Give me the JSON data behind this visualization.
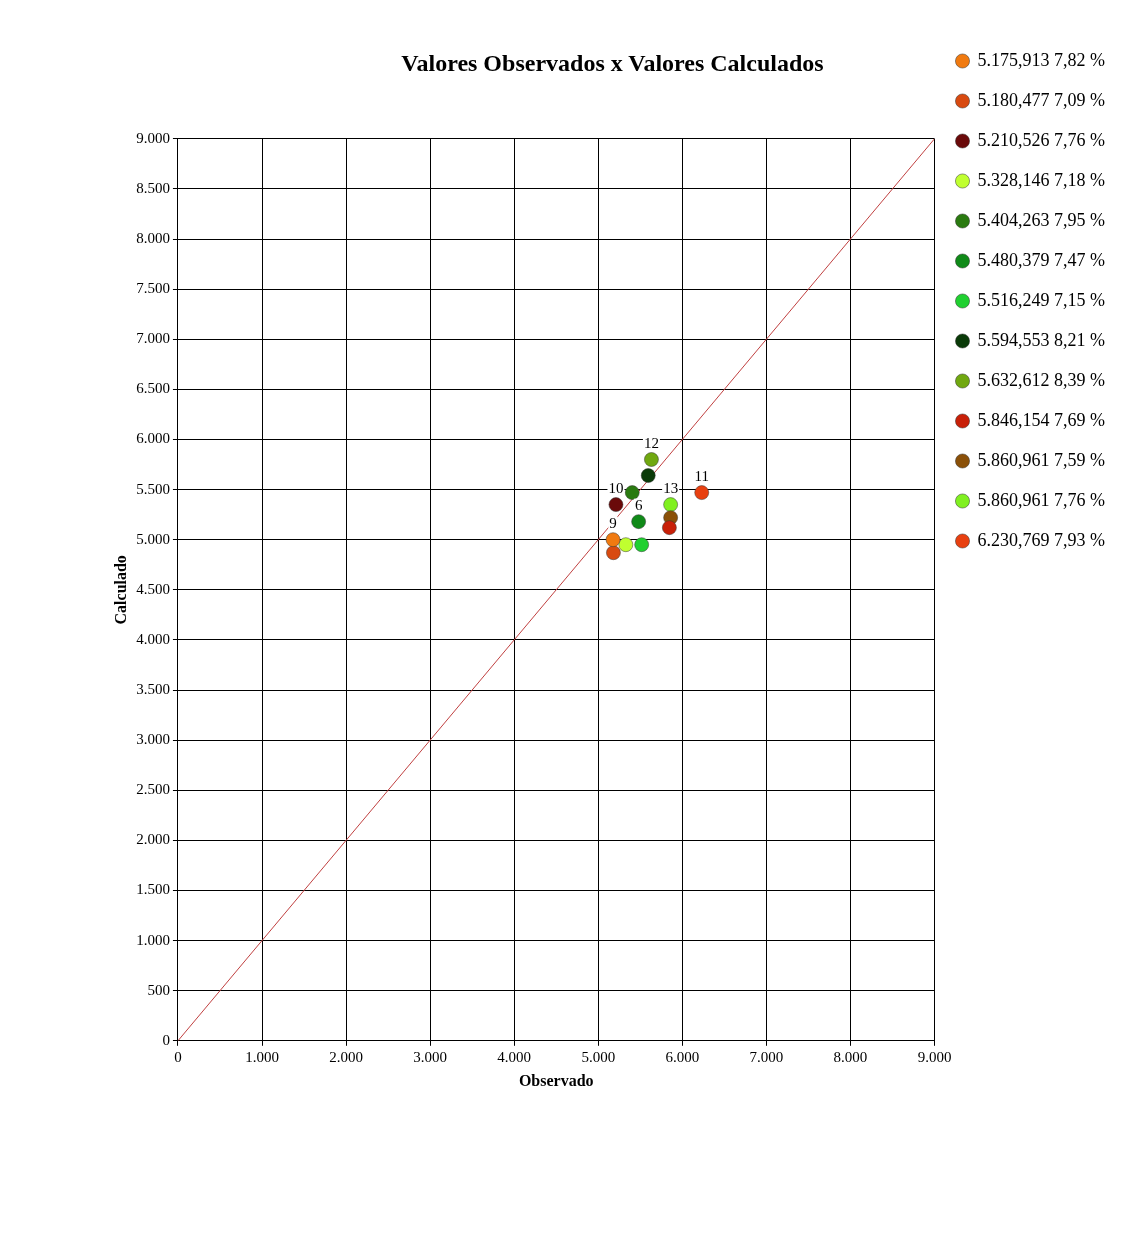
{
  "chart_data": {
    "type": "scatter",
    "title": "Valores Observados x Valores Calculados",
    "xlabel": "Observado",
    "ylabel": "Calculado",
    "xlim": [
      0,
      9000
    ],
    "ylim": [
      0,
      9000
    ],
    "xticks": [
      0,
      {
        "value": 1000,
        "label": "1.000"
      },
      {
        "value": 2000,
        "label": "2.000"
      },
      {
        "value": 3000,
        "label": "3.000"
      },
      {
        "value": 4000,
        "label": "4.000"
      },
      {
        "value": 5000,
        "label": "5.000"
      },
      {
        "value": 6000,
        "label": "6.000"
      },
      {
        "value": 7000,
        "label": "7.000"
      },
      {
        "value": 8000,
        "label": "8.000"
      },
      {
        "value": 9000,
        "label": "9.000"
      }
    ],
    "yticks": [
      0,
      500,
      {
        "value": 1000,
        "label": "1.000"
      },
      {
        "value": 1500,
        "label": "1.500"
      },
      {
        "value": 2000,
        "label": "2.000"
      },
      {
        "value": 2500,
        "label": "2.500"
      },
      {
        "value": 3000,
        "label": "3.000"
      },
      {
        "value": 3500,
        "label": "3.500"
      },
      {
        "value": 4000,
        "label": "4.000"
      },
      {
        "value": 4500,
        "label": "4.500"
      },
      {
        "value": 5000,
        "label": "5.000"
      },
      {
        "value": 5500,
        "label": "5.500"
      },
      {
        "value": 6000,
        "label": "6.000"
      },
      {
        "value": 6500,
        "label": "6.500"
      },
      {
        "value": 7000,
        "label": "7.000"
      },
      {
        "value": 7500,
        "label": "7.500"
      },
      {
        "value": 8000,
        "label": "8.000"
      },
      {
        "value": 8500,
        "label": "8.500"
      },
      {
        "value": 9000,
        "label": "9.000"
      }
    ],
    "grid": true,
    "legend": "right",
    "marker": "circle",
    "series": [
      {
        "name": "5.175,913 7,82 %",
        "color": "#f07a10",
        "x": [
          5175.913
        ],
        "values": [
          5000
        ]
      },
      {
        "name": "5.180,477 7,09 %",
        "color": "#d84a10",
        "x": [
          5180.477
        ],
        "values": [
          4870
        ]
      },
      {
        "name": "5.210,526 7,76 %",
        "color": "#6a0a0a",
        "x": [
          5210.526
        ],
        "values": [
          5350
        ]
      },
      {
        "name": "5.328,146 7,18 %",
        "color": "#c0ff30",
        "x": [
          5328.146
        ],
        "values": [
          4950
        ]
      },
      {
        "name": "5.404,263 7,95 %",
        "color": "#2a7a10",
        "x": [
          5404.263
        ],
        "values": [
          5470
        ]
      },
      {
        "name": "5.480,379 7,47 %",
        "color": "#108a18",
        "x": [
          5480.379
        ],
        "values": [
          5180
        ]
      },
      {
        "name": "5.516,249 7,15 %",
        "color": "#20d030",
        "x": [
          5516.249
        ],
        "values": [
          4950
        ]
      },
      {
        "name": "5.594,553 8,21 %",
        "color": "#0a3a08",
        "x": [
          5594.553
        ],
        "values": [
          5640
        ]
      },
      {
        "name": "5.632,612 8,39 %",
        "color": "#70a810",
        "x": [
          5632.612
        ],
        "values": [
          5800
        ]
      },
      {
        "name": "5.846,154 7,69 %",
        "color": "#c82008",
        "x": [
          5846.154
        ],
        "values": [
          5120
        ]
      },
      {
        "name": "5.860,961 7,59 %",
        "color": "#8a5008",
        "x": [
          5860.961
        ],
        "values": [
          5220
        ]
      },
      {
        "name": "5.860,961 7,76 %",
        "color": "#80f020",
        "x": [
          5860.961
        ],
        "values": [
          5350
        ]
      },
      {
        "name": "6.230,769 7,93 %",
        "color": "#e84010",
        "x": [
          6230.769
        ],
        "values": [
          5470
        ]
      },
      {
        "type": "line",
        "color": "#c04040",
        "x": [
          0,
          9000
        ],
        "values": [
          0,
          9000
        ],
        "marker": "none"
      }
    ],
    "annotations": [
      {
        "text": "9",
        "x": 5175.913,
        "y": 5000
      },
      {
        "text": "6",
        "x": 5480.379,
        "y": 5180
      },
      {
        "text": "10",
        "x": 5210.526,
        "y": 5350
      },
      {
        "text": "12",
        "x": 5632.612,
        "y": 5800
      },
      {
        "text": "13",
        "x": 5860.961,
        "y": 5350
      },
      {
        "text": "11",
        "x": 6230.769,
        "y": 5470
      }
    ]
  }
}
